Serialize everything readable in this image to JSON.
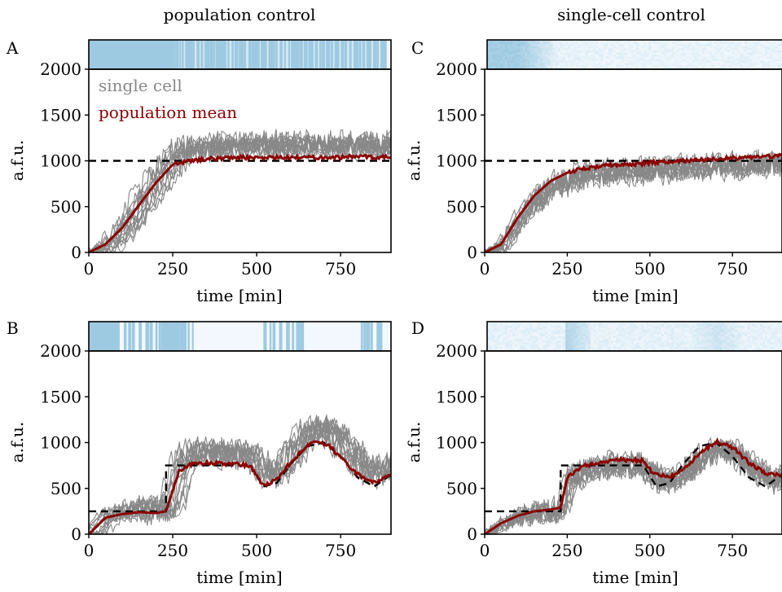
{
  "figure": {
    "column_titles": [
      "population control",
      "single-cell control"
    ],
    "colors": {
      "single_cell": "#888888",
      "population_mean": "#8b0000",
      "target": "#000000",
      "light_on": "#9ecae1",
      "light_off": "#f2f8fd",
      "axes": "#000000"
    }
  },
  "chart_data": [
    {
      "panel": "A",
      "type": "line",
      "column_title": "population control",
      "xlabel": "time [min]",
      "ylabel": "a.f.u.",
      "xlim": [
        0,
        900
      ],
      "ylim": [
        0,
        2000
      ],
      "xticks": [
        0,
        250,
        500,
        750
      ],
      "yticks": [
        0,
        500,
        1000,
        1500,
        2000
      ],
      "legend": [
        "single cell",
        "population mean"
      ],
      "legend_position": "top-left",
      "target": {
        "x": [
          0,
          900
        ],
        "y": [
          1000,
          1000
        ]
      },
      "population_mean": {
        "x": [
          0,
          50,
          100,
          150,
          200,
          250,
          300,
          350,
          400,
          450,
          500,
          550,
          600,
          650,
          700,
          750,
          800,
          850,
          900
        ],
        "y": [
          0,
          90,
          270,
          520,
          760,
          960,
          1000,
          1020,
          1030,
          1040,
          1030,
          1040,
          1030,
          1040,
          1040,
          1040,
          1050,
          1040,
          1040
        ]
      },
      "single_cells": {
        "count": 14,
        "x_start": 0,
        "x_end": 900,
        "approx_settle_range": [
          500,
          1700
        ],
        "approx_peak": 2000
      },
      "light_input": {
        "mode": "binary",
        "on_until": 255,
        "pulse_region": [
          255,
          880
        ],
        "note": "pulsed after 255 min"
      }
    },
    {
      "panel": "B",
      "type": "line",
      "column_title": "population control",
      "xlabel": "time [min]",
      "ylabel": "a.f.u.",
      "xlim": [
        0,
        900
      ],
      "ylim": [
        0,
        2000
      ],
      "xticks": [
        0,
        250,
        500,
        750
      ],
      "yticks": [
        0,
        500,
        1000,
        1500,
        2000
      ],
      "target": {
        "x": [
          0,
          230,
          230,
          480,
          520,
          560,
          600,
          650,
          700,
          750,
          800,
          850,
          900
        ],
        "y": [
          250,
          250,
          750,
          750,
          520,
          560,
          760,
          960,
          1000,
          850,
          620,
          520,
          650
        ]
      },
      "population_mean": {
        "x": [
          0,
          50,
          100,
          150,
          200,
          230,
          270,
          300,
          350,
          400,
          450,
          480,
          510,
          530,
          560,
          600,
          650,
          680,
          720,
          760,
          800,
          850,
          900
        ],
        "y": [
          0,
          180,
          220,
          240,
          230,
          250,
          700,
          760,
          780,
          770,
          760,
          750,
          570,
          540,
          600,
          780,
          960,
          1020,
          950,
          800,
          650,
          560,
          650
        ]
      },
      "single_cells": {
        "count": 14,
        "x_start": 0,
        "x_end": 900,
        "approx_peak": 1950
      },
      "light_input": {
        "mode": "binary",
        "on_blocks": [
          [
            0,
            85
          ],
          [
            215,
            270
          ]
        ],
        "pulse_regions": [
          [
            85,
            215
          ],
          [
            270,
            320
          ],
          [
            520,
            640
          ],
          [
            810,
            870
          ]
        ]
      }
    },
    {
      "panel": "C",
      "type": "line",
      "column_title": "single-cell control",
      "xlabel": "time [min]",
      "ylabel": "a.f.u.",
      "xlim": [
        0,
        900
      ],
      "ylim": [
        0,
        2000
      ],
      "xticks": [
        0,
        250,
        500,
        750
      ],
      "yticks": [
        0,
        500,
        1000,
        1500,
        2000
      ],
      "target": {
        "x": [
          0,
          900
        ],
        "y": [
          1000,
          1000
        ]
      },
      "population_mean": {
        "x": [
          0,
          50,
          100,
          150,
          200,
          250,
          300,
          350,
          400,
          450,
          500,
          550,
          600,
          650,
          700,
          750,
          800,
          850,
          900
        ],
        "y": [
          0,
          90,
          380,
          620,
          780,
          870,
          920,
          940,
          960,
          960,
          980,
          990,
          1000,
          1010,
          1020,
          1030,
          1040,
          1050,
          1050
        ]
      },
      "single_cells": {
        "count": 14,
        "x_start": 0,
        "x_end": 900,
        "approx_settle_range": [
          600,
          1800
        ]
      },
      "light_input": {
        "mode": "per-cell heatmap",
        "saturated_until": 90,
        "fades_by": 200
      }
    },
    {
      "panel": "D",
      "type": "line",
      "column_title": "single-cell control",
      "xlabel": "time [min]",
      "ylabel": "a.f.u.",
      "xlim": [
        0,
        900
      ],
      "ylim": [
        0,
        2000
      ],
      "xticks": [
        0,
        250,
        500,
        750
      ],
      "yticks": [
        0,
        500,
        1000,
        1500,
        2000
      ],
      "target": {
        "x": [
          0,
          230,
          230,
          480,
          520,
          560,
          600,
          650,
          700,
          750,
          800,
          850,
          900
        ],
        "y": [
          250,
          250,
          750,
          750,
          520,
          560,
          760,
          960,
          1000,
          850,
          620,
          520,
          650
        ]
      },
      "population_mean": {
        "x": [
          0,
          50,
          100,
          150,
          200,
          230,
          250,
          300,
          350,
          400,
          450,
          480,
          510,
          560,
          600,
          650,
          700,
          750,
          800,
          850,
          900
        ],
        "y": [
          0,
          120,
          200,
          250,
          270,
          290,
          620,
          740,
          780,
          810,
          810,
          800,
          660,
          620,
          700,
          880,
          1010,
          950,
          780,
          660,
          650
        ]
      },
      "single_cells": {
        "count": 14,
        "x_start": 0,
        "x_end": 900,
        "approx_peak": 1600
      },
      "light_input": {
        "mode": "per-cell heatmap",
        "bright_band": [
          230,
          300
        ],
        "bright_band_2": [
          580,
          760
        ]
      }
    }
  ]
}
